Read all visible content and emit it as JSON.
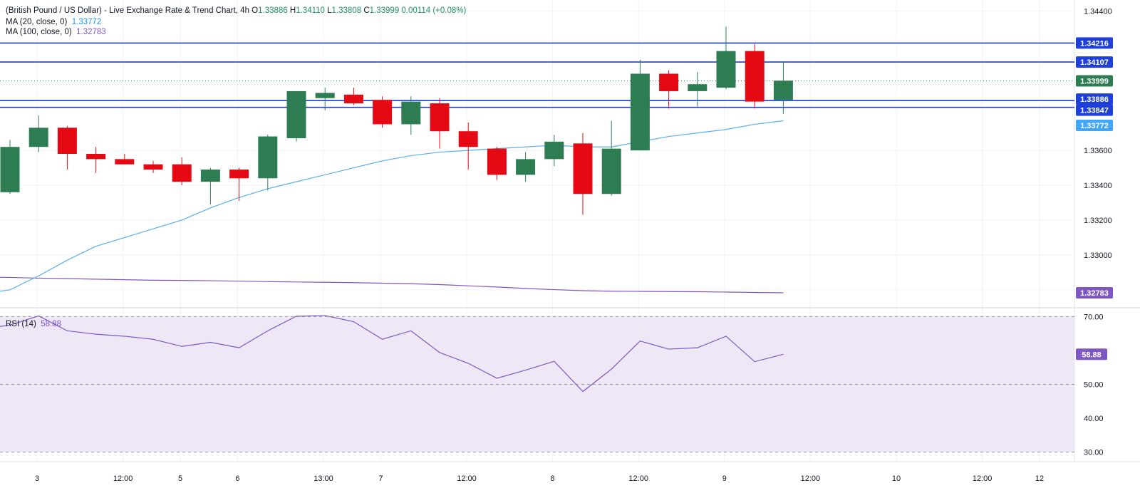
{
  "header": {
    "title": "(British Pound / US Dollar) - Live Exchange Rate & Trend Chart, 4h",
    "o_label": "O",
    "o_value": "1.33886",
    "h_label": "H",
    "h_value": "1.34110",
    "l_label": "L",
    "l_value": "1.33808",
    "c_label": "C",
    "c_value": "1.33999",
    "change": "0.00114 (+0.08%)"
  },
  "indicators": {
    "ma20_label": "MA (20, close, 0)",
    "ma20_value": "1.33772",
    "ma100_label": "MA (100, close, 0)",
    "ma100_value": "1.32783",
    "rsi_label": "RSI (14)",
    "rsi_value": "58.88"
  },
  "colors": {
    "up": "#2e7d52",
    "down": "#e50914",
    "ma20": "#5aaee8",
    "ma100": "#7e57c2",
    "hline": "#1e3fd8",
    "last_price": "#2e7d52",
    "rsi_band": "#ede7f6",
    "rsi_line": "#7e57c2"
  },
  "chart_data": [
    {
      "type": "candlestick",
      "title": "British Pound / US Dollar, 4h",
      "x": [
        "c1",
        "c2",
        "c3",
        "c4",
        "c5",
        "c6",
        "c7",
        "c8",
        "c9",
        "c10",
        "c11",
        "c12",
        "c13",
        "c14",
        "c15",
        "c16",
        "c17",
        "c18",
        "c19",
        "c20",
        "c21",
        "c22",
        "c23",
        "c24",
        "c25",
        "c26",
        "c27",
        "c28"
      ],
      "x_tick_labels": [
        {
          "label": "3",
          "at": 1.3
        },
        {
          "label": "12:00",
          "at": 4.3
        },
        {
          "label": "5",
          "at": 6.3
        },
        {
          "label": "6",
          "at": 8.3
        },
        {
          "label": "13:00",
          "at": 11.3
        },
        {
          "label": "7",
          "at": 13.3
        },
        {
          "label": "12:00",
          "at": 16.3
        },
        {
          "label": "8",
          "at": 19.3
        },
        {
          "label": "12:00",
          "at": 22.3
        },
        {
          "label": "9",
          "at": 25.3
        },
        {
          "label": "12:00",
          "at": 28.3
        },
        {
          "label": "10",
          "at": 31.3
        },
        {
          "label": "12:00",
          "at": 34.3
        },
        {
          "label": "12",
          "at": 36.3
        }
      ],
      "x_slots": 38.5,
      "ohlc": [
        [
          1.3336,
          1.3366,
          1.3335,
          1.3362
        ],
        [
          1.3362,
          1.338,
          1.3359,
          1.3373
        ],
        [
          1.3373,
          1.3374,
          1.3349,
          1.3358
        ],
        [
          1.3358,
          1.3362,
          1.3347,
          1.3355
        ],
        [
          1.3355,
          1.3358,
          1.3352,
          1.3352
        ],
        [
          1.3352,
          1.3354,
          1.3347,
          1.3349
        ],
        [
          1.3352,
          1.3356,
          1.334,
          1.3342
        ],
        [
          1.3342,
          1.335,
          1.3329,
          1.3349
        ],
        [
          1.3349,
          1.335,
          1.3331,
          1.3344
        ],
        [
          1.3344,
          1.3369,
          1.3337,
          1.3368
        ],
        [
          1.3367,
          1.3394,
          1.3365,
          1.3394
        ],
        [
          1.339,
          1.3396,
          1.3383,
          1.3393
        ],
        [
          1.3392,
          1.3396,
          1.3386,
          1.3387
        ],
        [
          1.3389,
          1.3391,
          1.3373,
          1.3375
        ],
        [
          1.3375,
          1.3391,
          1.3369,
          1.3388
        ],
        [
          1.3387,
          1.339,
          1.3361,
          1.3371
        ],
        [
          1.3371,
          1.3376,
          1.3349,
          1.3362
        ],
        [
          1.3361,
          1.3362,
          1.3343,
          1.3346
        ],
        [
          1.3346,
          1.3359,
          1.3342,
          1.3355
        ],
        [
          1.3355,
          1.3369,
          1.3351,
          1.3365
        ],
        [
          1.3364,
          1.337,
          1.3323,
          1.3335
        ],
        [
          1.3335,
          1.3377,
          1.3334,
          1.3361
        ],
        [
          1.336,
          1.3412,
          1.336,
          1.3404
        ],
        [
          1.3404,
          1.3406,
          1.3384,
          1.3394
        ],
        [
          1.3394,
          1.3405,
          1.3385,
          1.3398
        ],
        [
          1.3396,
          1.3431,
          1.3395,
          1.3417
        ],
        [
          1.3417,
          1.3421,
          1.3384,
          1.3388
        ],
        [
          1.3389,
          1.3411,
          1.3381,
          1.34
        ]
      ],
      "ma20": [
        1.328,
        1.3288,
        1.3297,
        1.3305,
        1.331,
        1.3315,
        1.332,
        1.3327,
        1.3333,
        1.3338,
        1.3342,
        1.3346,
        1.335,
        1.3354,
        1.3357,
        1.3359,
        1.336,
        1.3361,
        1.3362,
        1.3363,
        1.3362,
        1.3362,
        1.3365,
        1.3368,
        1.337,
        1.3372,
        1.3375,
        1.3377
      ],
      "ma100": [
        1.32871,
        1.32867,
        1.32864,
        1.32861,
        1.32858,
        1.32855,
        1.32854,
        1.32852,
        1.3285,
        1.32847,
        1.32845,
        1.32843,
        1.32841,
        1.32838,
        1.32835,
        1.3283,
        1.32823,
        1.32816,
        1.32808,
        1.32801,
        1.32795,
        1.32792,
        1.32791,
        1.3279,
        1.32789,
        1.32787,
        1.32785,
        1.32783
      ],
      "horizontal_lines": [
        1.34216,
        1.34107,
        1.33886,
        1.33847
      ],
      "last_price_line": 1.33999,
      "y_ticks": [
        1.344,
        1.336,
        1.334,
        1.332,
        1.33
      ],
      "y_tick_labels": [
        "1.34400",
        "1.33600",
        "1.33400",
        "1.33200",
        "1.33000"
      ],
      "ylim": [
        1.32697,
        1.34463
      ],
      "price_badges": [
        {
          "value": 1.34216,
          "label": "1.34216",
          "kind": "hline"
        },
        {
          "value": 1.34107,
          "label": "1.34107",
          "kind": "hline"
        },
        {
          "value": 1.33999,
          "label": "1.33999",
          "kind": "last"
        },
        {
          "value": 1.33886,
          "label": "1.33886",
          "kind": "hline"
        },
        {
          "value": 1.33847,
          "label": "1.33847",
          "kind": "hline"
        },
        {
          "value": 1.33772,
          "label": "1.33772",
          "kind": "ma20"
        },
        {
          "value": 1.32783,
          "label": "1.32783",
          "kind": "ma100"
        }
      ],
      "grid": true
    },
    {
      "type": "line",
      "title": "RSI (14)",
      "values": [
        67.5,
        70.2,
        65.8,
        64.8,
        64.2,
        63.3,
        61.2,
        62.4,
        60.8,
        65.8,
        70.1,
        70.3,
        68.5,
        63.3,
        65.8,
        59.4,
        56.2,
        51.8,
        54.2,
        56.8,
        47.9,
        54.5,
        62.8,
        60.4,
        60.8,
        64.2,
        56.7,
        58.88
      ],
      "y_ticks": [
        70.0,
        50.0,
        40.0,
        30.0
      ],
      "y_tick_labels": [
        "70.00",
        "50.00",
        "40.00",
        "30.00"
      ],
      "band": [
        30,
        70
      ],
      "ylim": [
        27.2,
        72.6
      ],
      "last_badge": "58.88",
      "grid": true
    }
  ]
}
